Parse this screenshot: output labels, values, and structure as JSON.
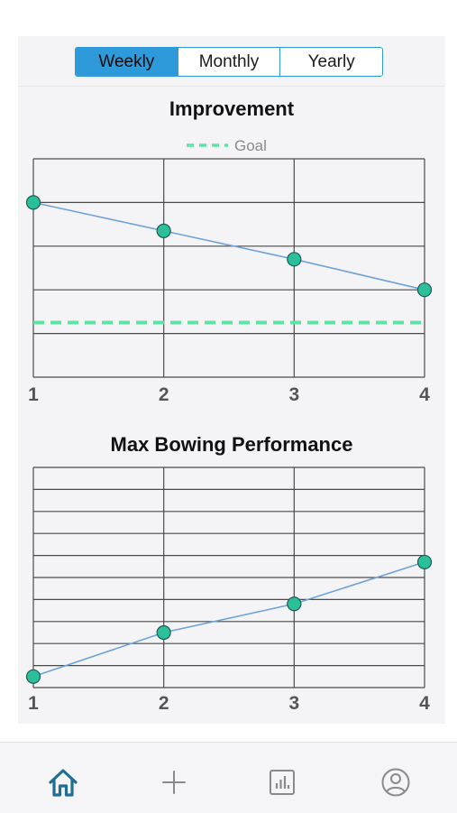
{
  "segment": {
    "options": [
      "Weekly",
      "Monthly",
      "Yearly"
    ],
    "selected": "Weekly"
  },
  "colors": {
    "accent": "#2f9ad9",
    "line": "#6fa2d8",
    "point": "#2bbf9a",
    "goal": "#5ee2a6",
    "grid": "#4a4a4a",
    "icon_active": "#1e6f93",
    "icon_inactive": "#8a8a8a"
  },
  "chart_data": [
    {
      "type": "line",
      "title": "Improvement",
      "categories": [
        "1",
        "2",
        "3",
        "4"
      ],
      "series": [
        {
          "values": [
            4.0,
            3.35,
            2.7,
            2.0
          ]
        }
      ],
      "goal": {
        "name": "Goal",
        "value": 1.25
      },
      "ylim": [
        0,
        5
      ],
      "y_gridlines": 5,
      "grid": true,
      "legend": "top-center"
    },
    {
      "type": "line",
      "title": "Max Bowing Performance",
      "categories": [
        "1",
        "2",
        "3",
        "4"
      ],
      "series": [
        {
          "values": [
            0.0,
            2.0,
            3.3,
            5.2
          ]
        }
      ],
      "ylim": [
        -0.5,
        9.5
      ],
      "y_gridlines": 10,
      "grid": true
    }
  ],
  "tabbar": {
    "items": [
      "home-icon",
      "plus-icon",
      "stats-icon",
      "profile-icon"
    ],
    "active": "home-icon"
  }
}
